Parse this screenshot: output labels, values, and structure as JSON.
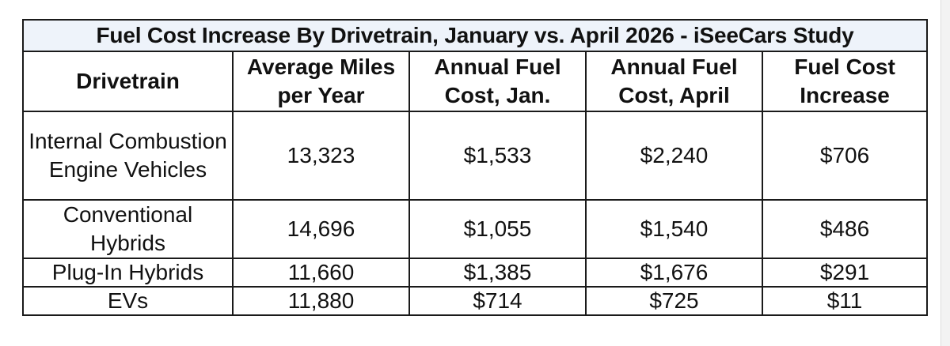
{
  "table": {
    "title": "Fuel Cost Increase By Drivetrain, January vs. April 2026 - iSeeCars Study",
    "headers": [
      "Drivetrain",
      "Average Miles per Year",
      "Annual Fuel Cost, Jan.",
      "Annual Fuel Cost, April",
      "Fuel Cost Increase"
    ],
    "rows": [
      [
        "Internal Combustion Engine Vehicles",
        "13,323",
        "$1,533",
        "$2,240",
        "$706"
      ],
      [
        "Conventional Hybrids",
        "14,696",
        "$1,055",
        "$1,540",
        "$486"
      ],
      [
        "Plug-In Hybrids",
        "11,660",
        "$1,385",
        "$1,676",
        "$291"
      ],
      [
        "EVs",
        "11,880",
        "$714",
        "$725",
        "$11"
      ]
    ]
  }
}
